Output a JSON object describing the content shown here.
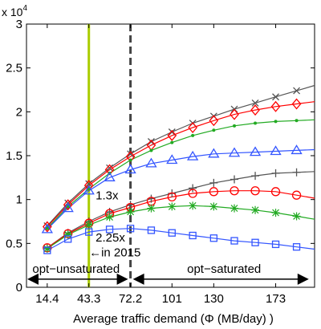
{
  "chart_data": {
    "type": "line",
    "xlabel": "Average traffic demand (Φ (MB/day) )",
    "ylabel": "",
    "y_exponent_label": "x 10",
    "y_exponent_power": "4",
    "xlim": [
      0,
      200
    ],
    "ylim": [
      0,
      3
    ],
    "x": [
      14.4,
      28.8,
      43.3,
      57.7,
      72.2,
      86.6,
      101,
      115.4,
      130,
      144.3,
      158.8,
      173,
      187.5
    ],
    "x_ticks": [
      14.4,
      43.3,
      72.2,
      101,
      130,
      173
    ],
    "x_tick_labels": [
      "14.4",
      "43.3",
      "72.2",
      "101",
      "130",
      "173"
    ],
    "y_ticks": [
      0,
      0.5,
      1,
      1.5,
      2,
      2.5,
      3
    ],
    "y_tick_labels": [
      "0",
      "0.5",
      "1",
      "1.5",
      "2",
      "2.5",
      "3"
    ],
    "grid": false,
    "series": [
      {
        "color": "#555555",
        "marker": "x",
        "values": [
          0.7,
          0.96,
          1.18,
          1.36,
          1.52,
          1.66,
          1.77,
          1.87,
          1.95,
          2.03,
          2.1,
          2.17,
          2.24
        ]
      },
      {
        "color": "#ff0000",
        "marker": "diamond",
        "values": [
          0.69,
          0.94,
          1.16,
          1.34,
          1.49,
          1.62,
          1.73,
          1.82,
          1.9,
          1.97,
          2.02,
          2.06,
          2.09
        ]
      },
      {
        "color": "#22aa22",
        "marker": "dot",
        "values": [
          0.67,
          0.92,
          1.12,
          1.3,
          1.45,
          1.56,
          1.65,
          1.73,
          1.79,
          1.84,
          1.87,
          1.89,
          1.9
        ]
      },
      {
        "color": "#3355ff",
        "marker": "triangle",
        "values": [
          0.66,
          0.9,
          1.1,
          1.25,
          1.34,
          1.41,
          1.45,
          1.49,
          1.52,
          1.53,
          1.54,
          1.55,
          1.56
        ]
      },
      {
        "color": "#555555",
        "marker": "plus",
        "values": [
          0.45,
          0.62,
          0.75,
          0.86,
          0.94,
          1.01,
          1.07,
          1.13,
          1.19,
          1.23,
          1.27,
          1.3,
          1.31
        ]
      },
      {
        "color": "#ff0000",
        "marker": "circle",
        "values": [
          0.45,
          0.61,
          0.73,
          0.84,
          0.91,
          0.98,
          1.03,
          1.07,
          1.09,
          1.1,
          1.1,
          1.09,
          1.05
        ]
      },
      {
        "color": "#22aa22",
        "marker": "star",
        "values": [
          0.44,
          0.6,
          0.71,
          0.8,
          0.86,
          0.9,
          0.92,
          0.93,
          0.92,
          0.9,
          0.88,
          0.85,
          0.81
        ]
      },
      {
        "color": "#3355ff",
        "marker": "square",
        "values": [
          0.42,
          0.55,
          0.63,
          0.66,
          0.67,
          0.65,
          0.62,
          0.59,
          0.56,
          0.53,
          0.51,
          0.49,
          0.46
        ]
      }
    ],
    "reference_lines": [
      {
        "x": 43.3,
        "color": "#aacc00",
        "style": "solid"
      },
      {
        "x": 72.2,
        "color": "#444444",
        "style": "dashed"
      }
    ],
    "annotations": [
      {
        "text": "1.3x",
        "x": 48,
        "y": 1.0
      },
      {
        "text": "2.25x",
        "x": 48,
        "y": 0.52
      },
      {
        "text": "←in 2015",
        "x": 43.5,
        "y": 0.35
      }
    ],
    "region_labels": [
      {
        "text": "opt−unsaturated",
        "x_from": 0,
        "x_to": 72.2,
        "y": 0.12
      },
      {
        "text": "opt−saturated",
        "x_from": 72.2,
        "x_to": 196,
        "y": 0.12
      }
    ]
  }
}
